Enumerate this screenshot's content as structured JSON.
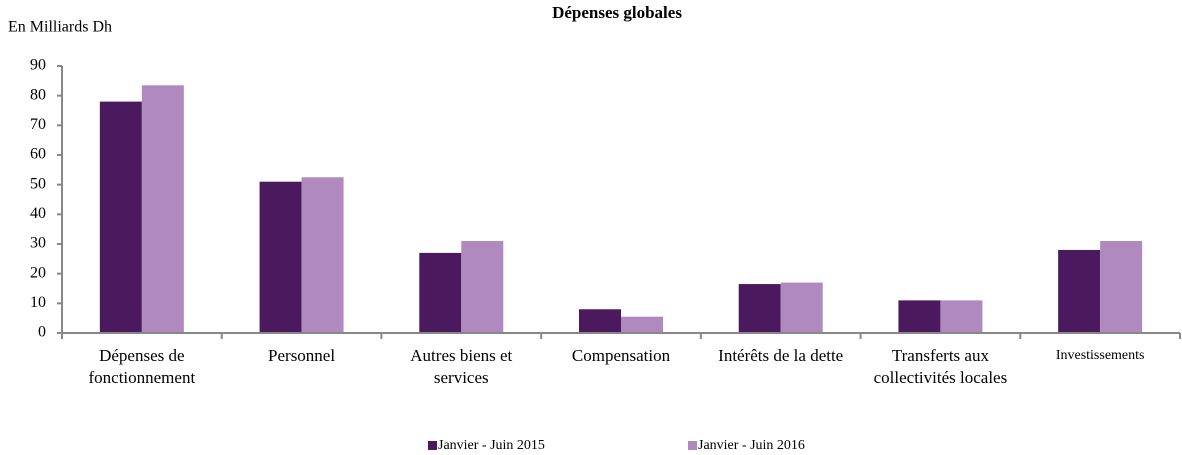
{
  "chart_data": {
    "type": "bar",
    "title": "Dépenses globales",
    "y_axis_label": "En Milliards Dh",
    "categories": [
      "Dépenses de fonctionnement",
      "Personnel",
      "Autres biens et services",
      "Compensation",
      "Intérêts de la dette",
      "Transferts aux collectivités locales",
      "Investissements"
    ],
    "series": [
      {
        "name": "Janvier - Juin 2015",
        "color": "#4b1a5e",
        "values": [
          78,
          51,
          27,
          8,
          16.5,
          11,
          28
        ]
      },
      {
        "name": "Janvier - Juin 2016",
        "color": "#b08abf",
        "values": [
          83.5,
          52.5,
          31,
          5.5,
          17,
          11,
          31
        ]
      }
    ],
    "ylim": [
      0,
      90
    ],
    "yticks": [
      0,
      10,
      20,
      30,
      40,
      50,
      60,
      70,
      80,
      90
    ],
    "legend": "bottom"
  }
}
